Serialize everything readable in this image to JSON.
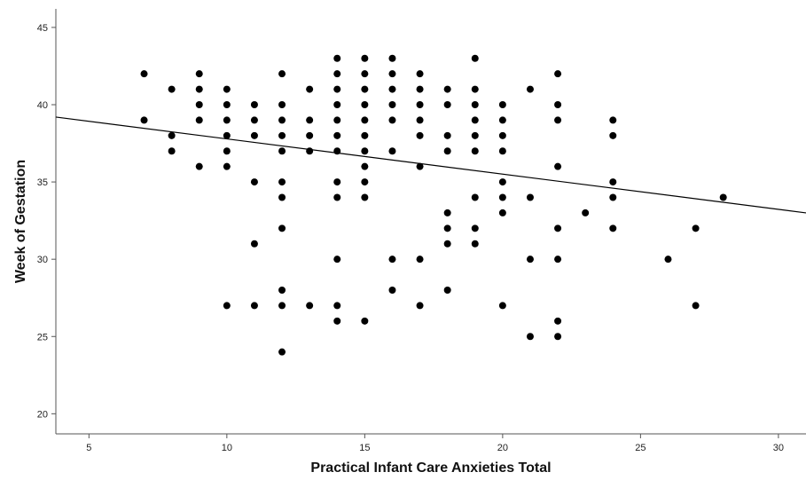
{
  "chart_data": {
    "type": "scatter",
    "xlabel": "Practical Infant Care Anxieties Total",
    "ylabel": "Week of Gestation",
    "xlim": [
      3.8,
      31
    ],
    "ylim": [
      18.7,
      46.2
    ],
    "x_ticks": [
      5,
      10,
      15,
      20,
      25,
      30
    ],
    "y_ticks": [
      20,
      25,
      30,
      35,
      40,
      45
    ],
    "grid": false,
    "legend": "none",
    "point_color": "#000000",
    "fit_line": {
      "x": [
        3.8,
        31
      ],
      "y": [
        39.2,
        33.0
      ],
      "color": "#000000"
    },
    "points": [
      [
        7,
        42
      ],
      [
        7,
        39
      ],
      [
        8,
        41
      ],
      [
        8,
        38
      ],
      [
        8,
        37
      ],
      [
        9,
        42
      ],
      [
        9,
        41
      ],
      [
        9,
        40
      ],
      [
        9,
        39
      ],
      [
        9,
        36
      ],
      [
        10,
        41
      ],
      [
        10,
        40
      ],
      [
        10,
        39
      ],
      [
        10,
        38
      ],
      [
        10,
        37
      ],
      [
        10,
        36
      ],
      [
        10,
        27
      ],
      [
        11,
        40
      ],
      [
        11,
        39
      ],
      [
        11,
        38
      ],
      [
        11,
        35
      ],
      [
        11,
        31
      ],
      [
        11,
        27
      ],
      [
        12,
        42
      ],
      [
        12,
        40
      ],
      [
        12,
        39
      ],
      [
        12,
        38
      ],
      [
        12,
        37
      ],
      [
        12,
        35
      ],
      [
        12,
        34
      ],
      [
        12,
        32
      ],
      [
        12,
        28
      ],
      [
        12,
        27
      ],
      [
        12,
        24
      ],
      [
        13,
        41
      ],
      [
        13,
        39
      ],
      [
        13,
        38
      ],
      [
        13,
        37
      ],
      [
        13,
        27
      ],
      [
        14,
        43
      ],
      [
        14,
        42
      ],
      [
        14,
        41
      ],
      [
        14,
        40
      ],
      [
        14,
        39
      ],
      [
        14,
        38
      ],
      [
        14,
        37
      ],
      [
        14,
        35
      ],
      [
        14,
        34
      ],
      [
        14,
        30
      ],
      [
        14,
        27
      ],
      [
        14,
        26
      ],
      [
        15,
        43
      ],
      [
        15,
        42
      ],
      [
        15,
        41
      ],
      [
        15,
        40
      ],
      [
        15,
        39
      ],
      [
        15,
        38
      ],
      [
        15,
        37
      ],
      [
        15,
        36
      ],
      [
        15,
        35
      ],
      [
        15,
        34
      ],
      [
        15,
        26
      ],
      [
        16,
        43
      ],
      [
        16,
        42
      ],
      [
        16,
        41
      ],
      [
        16,
        40
      ],
      [
        16,
        39
      ],
      [
        16,
        37
      ],
      [
        16,
        30
      ],
      [
        16,
        28
      ],
      [
        17,
        42
      ],
      [
        17,
        41
      ],
      [
        17,
        40
      ],
      [
        17,
        39
      ],
      [
        17,
        38
      ],
      [
        17,
        36
      ],
      [
        17,
        30
      ],
      [
        17,
        27
      ],
      [
        18,
        41
      ],
      [
        18,
        40
      ],
      [
        18,
        38
      ],
      [
        18,
        37
      ],
      [
        18,
        33
      ],
      [
        18,
        32
      ],
      [
        18,
        31
      ],
      [
        18,
        28
      ],
      [
        19,
        43
      ],
      [
        19,
        41
      ],
      [
        19,
        40
      ],
      [
        19,
        39
      ],
      [
        19,
        38
      ],
      [
        19,
        37
      ],
      [
        19,
        34
      ],
      [
        19,
        32
      ],
      [
        19,
        31
      ],
      [
        20,
        40
      ],
      [
        20,
        39
      ],
      [
        20,
        38
      ],
      [
        20,
        37
      ],
      [
        20,
        35
      ],
      [
        20,
        34
      ],
      [
        20,
        33
      ],
      [
        20,
        27
      ],
      [
        21,
        41
      ],
      [
        21,
        34
      ],
      [
        21,
        30
      ],
      [
        21,
        25
      ],
      [
        22,
        42
      ],
      [
        22,
        40
      ],
      [
        22,
        39
      ],
      [
        22,
        36
      ],
      [
        22,
        32
      ],
      [
        22,
        30
      ],
      [
        22,
        26
      ],
      [
        22,
        25
      ],
      [
        23,
        33
      ],
      [
        24,
        39
      ],
      [
        24,
        38
      ],
      [
        24,
        35
      ],
      [
        24,
        34
      ],
      [
        24,
        32
      ],
      [
        26,
        30
      ],
      [
        27,
        32
      ],
      [
        27,
        27
      ],
      [
        28,
        34
      ]
    ]
  }
}
